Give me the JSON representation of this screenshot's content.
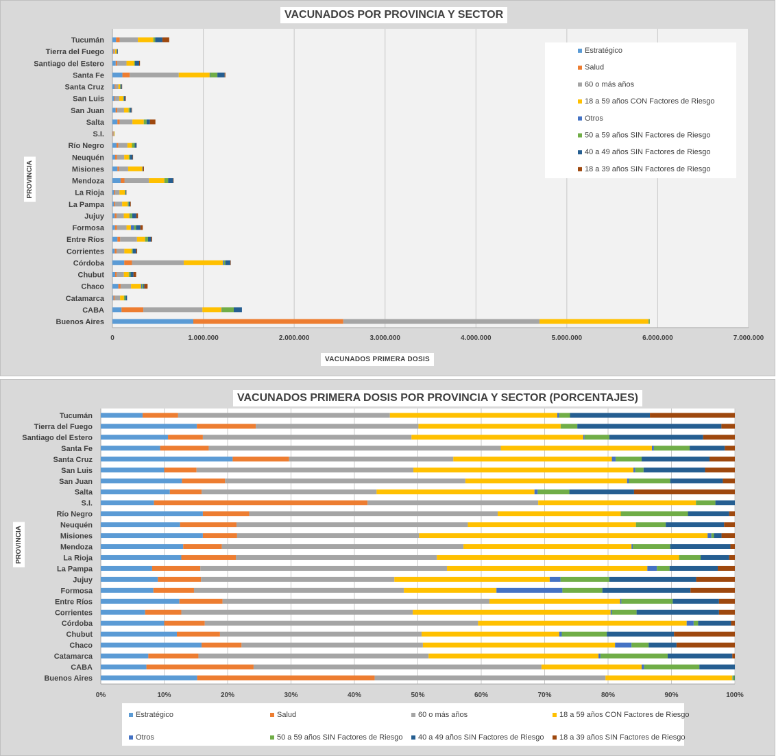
{
  "chart_data": [
    {
      "type": "bar",
      "orientation": "horizontal",
      "stacked": true,
      "title": "VACUNADOS POR PROVINCIA Y SECTOR",
      "xlabel": "VACUNADOS  PRIMERA  DOSIS",
      "ylabel": "PROVINCIA",
      "xlim": [
        0,
        7000000
      ],
      "xticks": [
        "0",
        "1.000.000",
        "2.000.000",
        "3.000.000",
        "4.000.000",
        "5.000.000",
        "6.000.000",
        "7.000.000"
      ],
      "grid": true,
      "legend_position": "right",
      "categories": [
        "Buenos Aires",
        "CABA",
        "Catamarca",
        "Chaco",
        "Chubut",
        "Córdoba",
        "Corrientes",
        "Entre Ríos",
        "Formosa",
        "Jujuy",
        "La Pampa",
        "La Rioja",
        "Mendoza",
        "Misiones",
        "Neuquén",
        "Río Negro",
        "S.I.",
        "Salta",
        "San Juan",
        "San Luis",
        "Santa Cruz",
        "Santa Fe",
        "Santiago del Estero",
        "Tierra del Fuego",
        "Tucumán"
      ],
      "series": [
        {
          "name": "Estratégico",
          "values": [
            890000,
            100000,
            12000,
            65000,
            30000,
            130000,
            25000,
            55000,
            28000,
            25000,
            15000,
            18000,
            90000,
            55000,
            30000,
            45000,
            3000,
            55000,
            35000,
            20000,
            25000,
            110000,
            36000,
            9000,
            40000
          ]
        },
        {
          "name": "Salud",
          "values": [
            1650000,
            240000,
            13000,
            25000,
            16000,
            85000,
            20000,
            30000,
            22000,
            20000,
            14000,
            12000,
            42000,
            18000,
            20000,
            20000,
            7500,
            25000,
            18000,
            10000,
            10000,
            80000,
            17000,
            7000,
            40000
          ]
        },
        {
          "name": "60 o más años",
          "values": [
            2160000,
            650000,
            59000,
            115000,
            80000,
            570000,
            86000,
            185000,
            105000,
            80000,
            78000,
            48000,
            270000,
            100000,
            80000,
            100000,
            6500,
            140000,
            75000,
            45000,
            30000,
            540000,
            102000,
            14000,
            200000
          ]
        },
        {
          "name": "18 a 59 años CON Factores de Riesgo",
          "values": [
            1200000,
            210000,
            43000,
            110000,
            54000,
            430000,
            80000,
            90000,
            48000,
            63000,
            62000,
            60000,
            170000,
            155000,
            50000,
            50000,
            6000,
            125000,
            50000,
            45000,
            20000,
            340000,
            83000,
            17000,
            170000
          ]
        },
        {
          "name": "Otros",
          "values": [
            3000,
            5000,
            500,
            10000,
            2000,
            12000,
            1000,
            1500,
            35000,
            5000,
            3000,
            0,
            1000,
            2000,
            0,
            0,
            0,
            1000,
            1000,
            1000,
            1000,
            5000,
            1000,
            0,
            2000
          ]
        },
        {
          "name": "50 a 59 años SIN Factores de Riesgo",
          "values": [
            10000,
            130000,
            17000,
            15000,
            18000,
            15000,
            12000,
            30000,
            22000,
            25000,
            8000,
            7000,
            40000,
            2000,
            15000,
            30000,
            1000,
            30000,
            15000,
            5000,
            5000,
            80000,
            10000,
            2000,
            18000
          ]
        },
        {
          "name": "40 a 49 años SIN Factores de Riesgo",
          "values": [
            0,
            90000,
            16000,
            12000,
            32000,
            55000,
            38000,
            35000,
            48000,
            45000,
            15000,
            8000,
            55000,
            5000,
            27000,
            20000,
            1000,
            37000,
            16000,
            15000,
            12000,
            80000,
            45000,
            10000,
            80000
          ]
        },
        {
          "name": "18 a 39 años SIN Factores de Riesgo",
          "values": [
            0,
            0,
            1000,
            35000,
            29000,
            5000,
            10000,
            10000,
            26000,
            18000,
            7000,
            2000,
            5000,
            10000,
            5000,
            2000,
            0,
            60000,
            5000,
            7000,
            4000,
            8000,
            9000,
            1000,
            75000
          ]
        }
      ]
    },
    {
      "type": "bar",
      "orientation": "horizontal",
      "stacked": true,
      "normalized": true,
      "title": "VACUNADOS PRIMERA DOSIS POR PROVINCIA Y SECTOR (PORCENTAJES)",
      "ylabel": "PROVINCIA",
      "xlim": [
        0,
        100
      ],
      "xticks": [
        "0%",
        "10%",
        "20%",
        "30%",
        "40%",
        "50%",
        "60%",
        "70%",
        "80%",
        "90%",
        "100%"
      ],
      "grid": true,
      "legend_position": "bottom",
      "categories": [
        "Buenos Aires",
        "CABA",
        "Catamarca",
        "Chaco",
        "Chubut",
        "Córdoba",
        "Corrientes",
        "Entre Ríos",
        "Formosa",
        "Jujuy",
        "La Pampa",
        "La Rioja",
        "Mendoza",
        "Misiones",
        "Neuquén",
        "Río Negro",
        "S.I.",
        "Salta",
        "San Juan",
        "San Luis",
        "Santa Cruz",
        "Santa Fe",
        "Santiago del Estero",
        "Tierra del Fuego",
        "Tucumán"
      ],
      "series": [
        {
          "name": "Estratégico",
          "values": [
            15.2,
            7.2,
            7.5,
            15.9,
            12.0,
            10.0,
            7.0,
            12.4,
            8.3,
            9.0,
            8.1,
            12.7,
            13.0,
            16.1,
            12.5,
            16.1,
            8.2,
            10.9,
            12.8,
            10.0,
            20.8,
            8.8,
            10.6,
            15.0,
            6.6
          ]
        },
        {
          "name": "Salud",
          "values": [
            28.0,
            16.9,
            7.9,
            6.3,
            6.8,
            6.4,
            5.7,
            6.8,
            6.4,
            6.8,
            7.6,
            8.6,
            6.1,
            5.4,
            8.9,
            7.3,
            32.9,
            5.0,
            6.8,
            5.1,
            8.9,
            7.2,
            5.5,
            9.2,
            5.6
          ]
        },
        {
          "name": "60 o más años",
          "values": [
            36.4,
            45.4,
            36.3,
            28.6,
            31.8,
            43.1,
            36.5,
            42.1,
            33.1,
            30.5,
            38.9,
            31.7,
            38.1,
            28.7,
            36.5,
            39.2,
            26.3,
            27.6,
            37.9,
            34.2,
            25.9,
            43.3,
            32.9,
            25.4,
            33.4
          ]
        },
        {
          "name": "18 a 59 años CON Factores de Riesgo",
          "values": [
            20.0,
            15.8,
            26.8,
            30.3,
            21.7,
            32.9,
            31.2,
            20.6,
            14.6,
            24.5,
            31.6,
            38.2,
            26.5,
            45.5,
            26.5,
            19.4,
            24.3,
            24.9,
            25.5,
            34.7,
            25.0,
            22.4,
            27.1,
            22.2,
            26.4
          ]
        },
        {
          "name": "Otros",
          "values": [
            0.05,
            0.4,
            0.3,
            2.6,
            0.4,
            1.1,
            0.2,
            0.2,
            10.4,
            1.7,
            1.5,
            0.0,
            0.2,
            0.6,
            0.0,
            0.0,
            0.0,
            0.5,
            0.3,
            0.3,
            0.6,
            0.3,
            0.2,
            0.0,
            0.3
          ]
        },
        {
          "name": "50 a 59 años SIN Factores de Riesgo",
          "values": [
            0.3,
            8.7,
            10.6,
            2.7,
            7.1,
            0.7,
            3.9,
            8.1,
            6.3,
            7.7,
            2.0,
            3.4,
            5.9,
            0.4,
            4.7,
            10.6,
            3.0,
            5.0,
            6.5,
            1.3,
            4.1,
            5.3,
            3.9,
            2.6,
            1.7
          ]
        },
        {
          "name": "40 a 49 años SIN Factores de Riesgo",
          "values": [
            0.05,
            5.6,
            10.2,
            4.4,
            10.6,
            5.2,
            13.0,
            7.3,
            13.9,
            13.7,
            7.6,
            4.5,
            9.5,
            1.2,
            9.2,
            6.5,
            3.0,
            10.2,
            8.3,
            9.7,
            10.7,
            5.2,
            14.8,
            22.5,
            12.6
          ]
        },
        {
          "name": "18 a 39 años SIN Factores de Riesgo",
          "values": [
            0.0,
            0.0,
            0.4,
            9.2,
            9.6,
            0.6,
            2.5,
            2.5,
            7.0,
            6.1,
            2.7,
            0.9,
            0.7,
            2.1,
            1.7,
            0.9,
            0.0,
            15.9,
            1.9,
            4.7,
            4.0,
            1.5,
            5.0,
            2.1,
            13.4
          ]
        }
      ]
    }
  ],
  "colors": [
    "#5b9bd5",
    "#ed7d31",
    "#a5a5a5",
    "#ffc000",
    "#4472c4",
    "#70ad47",
    "#255e91",
    "#9e480e"
  ]
}
